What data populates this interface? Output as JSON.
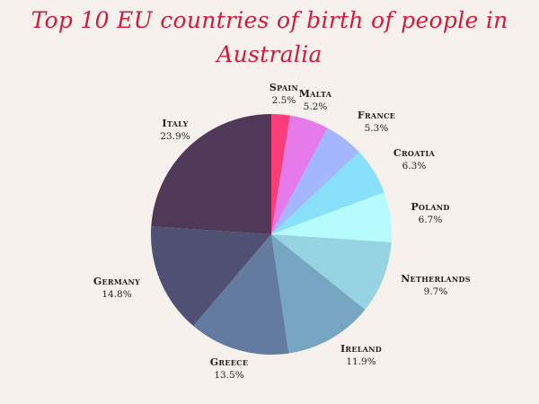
{
  "chart_data": {
    "type": "pie",
    "title_line1": "Top 10 EU countries of birth of people in",
    "title_line2": "Australia",
    "slices": [
      {
        "label": "Spain",
        "value": 2.5,
        "display": "2.5%",
        "color": "#fb3d7a"
      },
      {
        "label": "Malta",
        "value": 5.2,
        "display": "5.2%",
        "color": "#e57ae8"
      },
      {
        "label": "France",
        "value": 5.3,
        "display": "5.3%",
        "color": "#a4b6fc"
      },
      {
        "label": "Croatia",
        "value": 6.3,
        "display": "6.3%",
        "color": "#87e1fb"
      },
      {
        "label": "Poland",
        "value": 6.7,
        "display": "6.7%",
        "color": "#b6fbfd"
      },
      {
        "label": "Netherlands",
        "value": 9.7,
        "display": "9.7%",
        "color": "#96d3e3"
      },
      {
        "label": "Ireland",
        "value": 11.9,
        "display": "11.9%",
        "color": "#77a6c3"
      },
      {
        "label": "Greece",
        "value": 13.5,
        "display": "13.5%",
        "color": "#627b9f"
      },
      {
        "label": "Germany",
        "value": 14.8,
        "display": "14.8%",
        "color": "#4f5073"
      },
      {
        "label": "Italy",
        "value": 23.9,
        "display": "23.9%",
        "color": "#4f3858"
      }
    ]
  }
}
